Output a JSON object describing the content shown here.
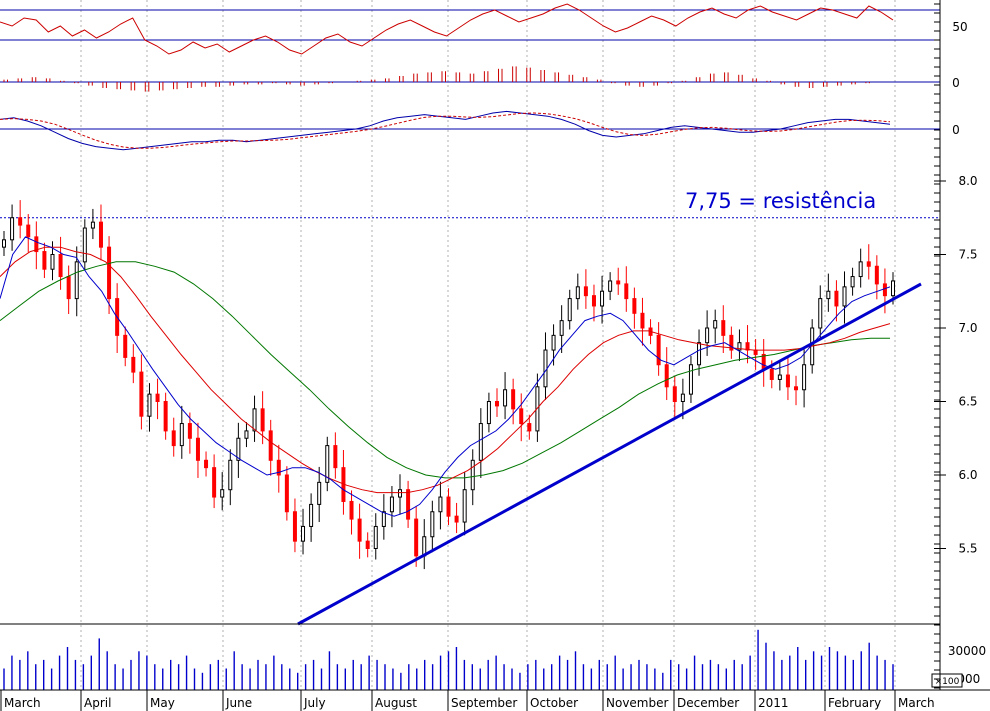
{
  "chart_data": {
    "type": "candlestick",
    "annotation": "7,75 = resistência",
    "resistance_level": 7.75,
    "months": [
      "March",
      "April",
      "May",
      "June",
      "July",
      "August",
      "September",
      "October",
      "November",
      "December",
      "2011",
      "February",
      "March"
    ],
    "price_axis": {
      "ticks": [
        "8.0",
        "7.5",
        "7.0",
        "6.5",
        "6.0",
        "5.5"
      ],
      "tick_values": [
        8.0,
        7.5,
        7.0,
        6.5,
        6.0,
        5.5
      ],
      "range": [
        5.18,
        8.0
      ]
    },
    "volume_axis": {
      "ticks": [
        "30000",
        "0000"
      ],
      "multiplier_label": "×100"
    },
    "indicator_axes": {
      "rsi_ticks": [
        "50"
      ],
      "histogram_ticks": [
        "0"
      ],
      "macd_ticks": [
        "0"
      ]
    },
    "close": [
      7.6,
      7.75,
      7.7,
      7.62,
      7.52,
      7.4,
      7.5,
      7.35,
      7.2,
      7.45,
      7.68,
      7.72,
      7.55,
      7.2,
      6.95,
      6.8,
      6.7,
      6.4,
      6.55,
      6.5,
      6.3,
      6.2,
      6.35,
      6.25,
      6.1,
      6.05,
      5.85,
      5.9,
      6.1,
      6.25,
      6.3,
      6.45,
      6.3,
      6.1,
      6.0,
      5.75,
      5.55,
      5.65,
      5.8,
      5.95,
      6.2,
      6.05,
      5.82,
      5.7,
      5.55,
      5.5,
      5.65,
      5.75,
      5.85,
      5.9,
      5.7,
      5.45,
      5.58,
      5.75,
      5.85,
      5.72,
      5.68,
      5.9,
      6.1,
      6.35,
      6.5,
      6.47,
      6.58,
      6.45,
      6.35,
      6.3,
      6.6,
      6.85,
      6.95,
      7.05,
      7.2,
      7.28,
      7.22,
      7.15,
      7.25,
      7.32,
      7.3,
      7.2,
      7.1,
      7.0,
      6.95,
      6.75,
      6.6,
      6.5,
      6.55,
      6.75,
      6.9,
      7.0,
      7.05,
      6.95,
      6.85,
      6.9,
      6.85,
      6.82,
      6.72,
      6.65,
      6.68,
      6.6,
      6.58,
      6.75,
      7.0,
      7.2,
      7.25,
      7.15,
      7.28,
      7.35,
      7.45,
      7.42,
      7.3,
      7.22,
      7.32
    ],
    "sma_blue": [
      7.2,
      7.5,
      7.62,
      7.58,
      7.55,
      7.5,
      7.48,
      7.35,
      7.25,
      7.1,
      6.98,
      6.85,
      6.72,
      6.6,
      6.48,
      6.38,
      6.3,
      6.22,
      6.16,
      6.1,
      6.05,
      6.0,
      6.02,
      6.05,
      6.05,
      6.02,
      5.97,
      5.9,
      5.85,
      5.8,
      5.75,
      5.72,
      5.75,
      5.8,
      5.9,
      6.02,
      6.12,
      6.2,
      6.25,
      6.3,
      6.38,
      6.48,
      6.6,
      6.72,
      6.85,
      6.95,
      7.05,
      7.08,
      7.1,
      7.05,
      6.95,
      6.85,
      6.78,
      6.75,
      6.8,
      6.85,
      6.88,
      6.9,
      6.85,
      6.8,
      6.75,
      6.72,
      6.75,
      6.8,
      6.9,
      7.0,
      7.1,
      7.18,
      7.22,
      7.25,
      7.28
    ],
    "sma_red": [
      7.35,
      7.45,
      7.52,
      7.55,
      7.55,
      7.52,
      7.5,
      7.45,
      7.35,
      7.22,
      7.08,
      6.95,
      6.82,
      6.7,
      6.58,
      6.48,
      6.38,
      6.3,
      6.22,
      6.15,
      6.08,
      6.02,
      5.97,
      5.93,
      5.9,
      5.88,
      5.88,
      5.88,
      5.9,
      5.93,
      5.98,
      6.03,
      6.1,
      6.18,
      6.28,
      6.38,
      6.5,
      6.6,
      6.72,
      6.82,
      6.9,
      6.95,
      6.98,
      6.98,
      6.95,
      6.92,
      6.9,
      6.88,
      6.87,
      6.86,
      6.85,
      6.85,
      6.85,
      6.86,
      6.88,
      6.9,
      6.93,
      6.97,
      7.0,
      7.03
    ],
    "sma_green": [
      7.05,
      7.15,
      7.25,
      7.32,
      7.38,
      7.42,
      7.45,
      7.45,
      7.42,
      7.38,
      7.3,
      7.2,
      7.08,
      6.95,
      6.82,
      6.7,
      6.58,
      6.45,
      6.33,
      6.22,
      6.12,
      6.05,
      6.0,
      5.98,
      5.98,
      6.0,
      6.03,
      6.08,
      6.15,
      6.22,
      6.3,
      6.38,
      6.46,
      6.55,
      6.62,
      6.68,
      6.72,
      6.75,
      6.78,
      6.8,
      6.82,
      6.85,
      6.88,
      6.9,
      6.92,
      6.93,
      6.93
    ],
    "volume": [
      5,
      8,
      7,
      9,
      6,
      7,
      5,
      8,
      10,
      7,
      6,
      8,
      12,
      9,
      6,
      5,
      7,
      9,
      8,
      6,
      5,
      7,
      6,
      8,
      5,
      4,
      6,
      7,
      5,
      9,
      6,
      5,
      7,
      6,
      8,
      6,
      5,
      4,
      6,
      7,
      5,
      9,
      6,
      5,
      7,
      6,
      8,
      7,
      6,
      5,
      4,
      6,
      5,
      7,
      6,
      8,
      9,
      10,
      7,
      6,
      5,
      7,
      8,
      6,
      5,
      4,
      6,
      7,
      5,
      6,
      8,
      7,
      9,
      6,
      5,
      7,
      6,
      8,
      5,
      6,
      7,
      6,
      5,
      4,
      7,
      6,
      5,
      8,
      6,
      7,
      6,
      5,
      7,
      6,
      8,
      14,
      11,
      9,
      7,
      8,
      10,
      7,
      9,
      8,
      10,
      9,
      8,
      7,
      9,
      11,
      8,
      7,
      6
    ],
    "rsi": [
      54,
      52,
      56,
      55,
      49,
      52,
      47,
      50,
      46,
      49,
      53,
      56,
      45,
      42,
      38,
      40,
      44,
      41,
      43,
      39,
      42,
      45,
      47,
      44,
      40,
      38,
      42,
      46,
      48,
      44,
      42,
      46,
      50,
      53,
      55,
      52,
      49,
      47,
      51,
      55,
      58,
      60,
      57,
      54,
      56,
      58,
      61,
      63,
      60,
      56,
      52,
      49,
      51,
      54,
      57,
      55,
      52,
      56,
      59,
      61,
      58,
      56,
      60,
      62,
      59,
      57,
      55,
      58,
      61,
      60,
      58,
      56,
      62,
      59,
      55
    ],
    "histogram": [
      2,
      3,
      4,
      3,
      1,
      -1,
      -3,
      -5,
      -6,
      -7,
      -8,
      -7,
      -6,
      -5,
      -4,
      -4,
      -3,
      -2,
      -2,
      -1,
      -2,
      -3,
      -2,
      -1,
      0,
      1,
      2,
      3,
      5,
      7,
      8,
      9,
      8,
      7,
      9,
      11,
      13,
      12,
      10,
      8,
      6,
      4,
      2,
      -1,
      -3,
      -4,
      -3,
      -1,
      1,
      4,
      7,
      8,
      6,
      3,
      1,
      -2,
      -4,
      -5,
      -4,
      -3,
      -2,
      -1,
      0
    ],
    "macd": [
      6,
      7,
      5,
      2,
      -2,
      -6,
      -9,
      -11,
      -12,
      -13,
      -12,
      -11,
      -10,
      -9,
      -8,
      -8,
      -7,
      -7,
      -8,
      -7,
      -6,
      -5,
      -4,
      -3,
      -2,
      -1,
      0,
      2,
      5,
      7,
      8,
      9,
      8,
      7,
      6,
      8,
      10,
      11,
      10,
      9,
      8,
      6,
      3,
      -1,
      -4,
      -5,
      -4,
      -3,
      -1,
      1,
      2,
      1,
      0,
      -1,
      -2,
      -2,
      -1,
      0,
      2,
      4,
      5,
      6,
      6,
      5,
      4,
      3
    ]
  },
  "colors": {
    "background": "#ffffff",
    "axis_line": "#000000",
    "frame_line": "#000000",
    "grid": "#b0b0b0",
    "up_candle": "#000000",
    "down_candle": "#ff0000",
    "sma_blue": "#0000cc",
    "sma_red": "#dd0000",
    "sma_green": "#007700",
    "trendline": "#0000cc",
    "resistance_text": "#0000cc",
    "resistance_line": "#0000cc",
    "rsi_line": "#cc0000",
    "rsi_bands": "#0000aa",
    "histogram": "#cc0000",
    "macd_signal": "#cc0000",
    "macd_line": "#0000aa",
    "volume": "#0000cc"
  }
}
